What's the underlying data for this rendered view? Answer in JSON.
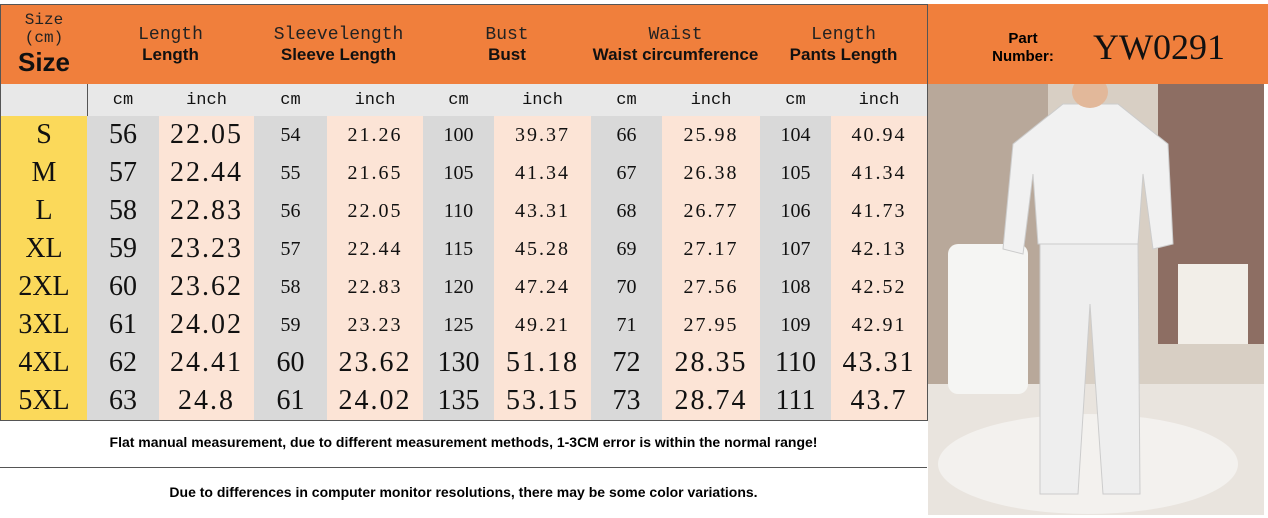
{
  "size_header": {
    "line1": "Size",
    "line2": "(cm)",
    "line3": "Size"
  },
  "groups": [
    {
      "title": "Length",
      "subtitle": "Length"
    },
    {
      "title": "Sleevelength",
      "subtitle": "Sleeve Length"
    },
    {
      "title": "Bust",
      "subtitle": "Bust"
    },
    {
      "title": "Waist",
      "subtitle": "Waist circumference"
    },
    {
      "title": "Length",
      "subtitle": "Pants Length"
    }
  ],
  "units": [
    "cm",
    "inch"
  ],
  "rows": [
    [
      "S",
      "56",
      "22.05",
      "54",
      "21.26",
      "100",
      "39.37",
      "66",
      "25.98",
      "104",
      "40.94"
    ],
    [
      "M",
      "57",
      "22.44",
      "55",
      "21.65",
      "105",
      "41.34",
      "67",
      "26.38",
      "105",
      "41.34"
    ],
    [
      "L",
      "58",
      "22.83",
      "56",
      "22.05",
      "110",
      "43.31",
      "68",
      "26.77",
      "106",
      "41.73"
    ],
    [
      "XL",
      "59",
      "23.23",
      "57",
      "22.44",
      "115",
      "45.28",
      "69",
      "27.17",
      "107",
      "42.13"
    ],
    [
      "2XL",
      "60",
      "23.62",
      "58",
      "22.83",
      "120",
      "47.24",
      "70",
      "27.56",
      "108",
      "42.52"
    ],
    [
      "3XL",
      "61",
      "24.02",
      "59",
      "23.23",
      "125",
      "49.21",
      "71",
      "27.95",
      "109",
      "42.91"
    ],
    [
      "4XL",
      "62",
      "24.41",
      "60",
      "23.62",
      "130",
      "51.18",
      "72",
      "28.35",
      "110",
      "43.31"
    ],
    [
      "5XL",
      "63",
      "24.8",
      "61",
      "24.02",
      "135",
      "53.15",
      "73",
      "28.74",
      "111",
      "43.7"
    ]
  ],
  "part": {
    "label": "Part Number:",
    "value": "YW0291"
  },
  "notes": [
    "Flat manual measurement, due to different measurement methods, 1-3CM error is within the normal range!",
    "Due to differences in computer monitor resolutions, there may be some color variations."
  ]
}
